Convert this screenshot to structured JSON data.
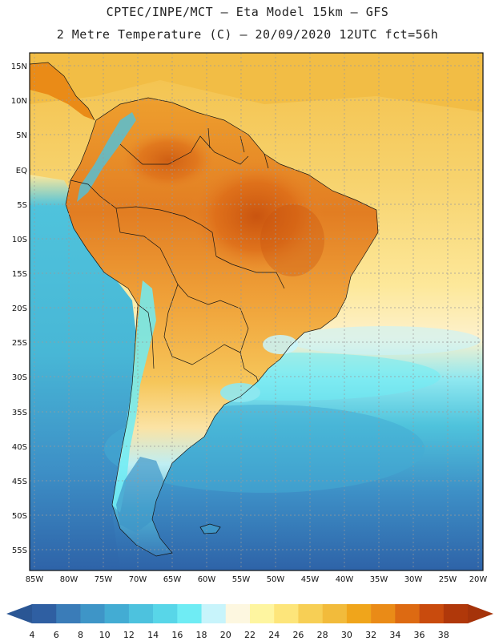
{
  "header": {
    "line1": "CPTEC/INPE/MCT –  Eta Model 15km – GFS",
    "line2": "2 Metre Temperature (C) – 20/09/2020 12UTC fct=56h"
  },
  "axes": {
    "lat_labels": [
      "15N",
      "10N",
      "5N",
      "EQ",
      "5S",
      "10S",
      "15S",
      "20S",
      "25S",
      "30S",
      "35S",
      "40S",
      "45S",
      "50S",
      "55S"
    ],
    "lon_labels": [
      "85W",
      "80W",
      "75W",
      "70W",
      "65W",
      "60W",
      "55W",
      "50W",
      "45W",
      "40W",
      "35W",
      "30W",
      "25W",
      "20W"
    ]
  },
  "colorbar": {
    "values": [
      "4",
      "6",
      "8",
      "10",
      "12",
      "14",
      "16",
      "18",
      "20",
      "22",
      "24",
      "26",
      "28",
      "30",
      "32",
      "34",
      "36",
      "38"
    ],
    "colors": [
      "#2f5fa2",
      "#3a7cb8",
      "#3e95c7",
      "#43acd3",
      "#4dc2de",
      "#58d6e8",
      "#6fecf4",
      "#c8f4fb",
      "#fdf7e0",
      "#fef5a0",
      "#fde57a",
      "#f7cf55",
      "#f2bb3b",
      "#f0a51b",
      "#ea8b17",
      "#dd6a12",
      "#c94b0d",
      "#b0380a"
    ],
    "low_arrow_color": "#2a5694",
    "high_arrow_color": "#a5330a"
  },
  "map": {
    "ocean_colors": {
      "deep": "#2e63a8",
      "mid": "#3d8fc6",
      "shelf": "#4fc3dc",
      "coast": "#8fe8f0",
      "warm_atlantic": "#fde89a",
      "tropical": "#f5c14b"
    },
    "land_colors": {
      "hot": "#d6621b",
      "warm": "#ee9f2e",
      "mild": "#f6c65a",
      "andes": "#7fe3ef",
      "patagonia": "#4aa6cf"
    }
  }
}
